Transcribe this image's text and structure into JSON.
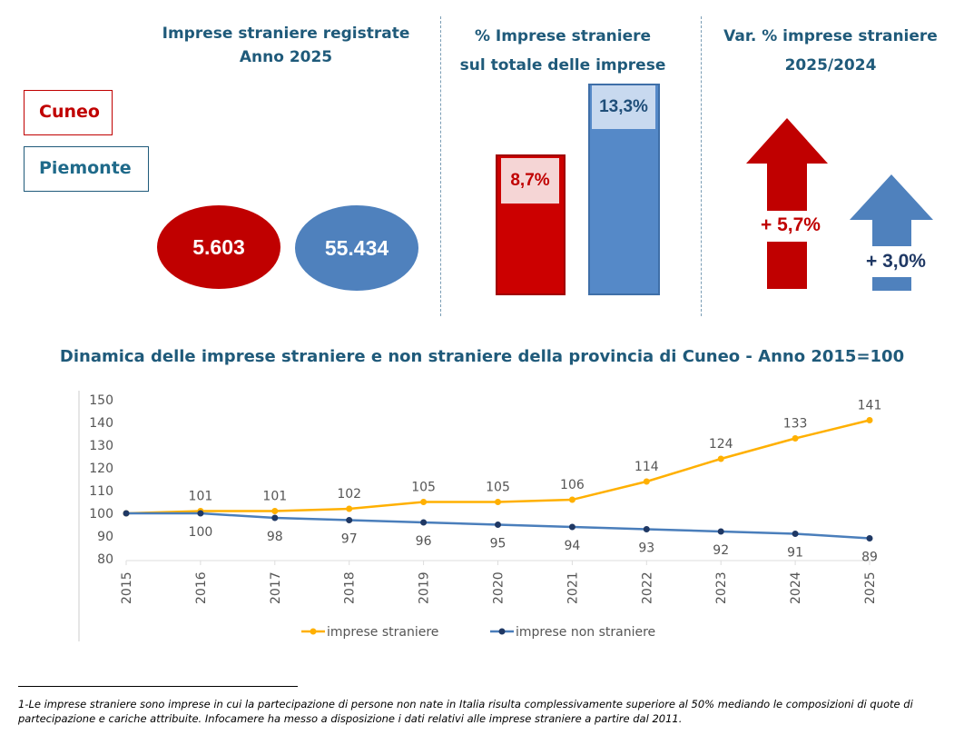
{
  "panel1": {
    "title_line1": "Imprese straniere registrate",
    "title_line2": "Anno 2025",
    "legend": [
      {
        "label": "Cuneo",
        "color": "#c00000"
      },
      {
        "label": "Piemonte",
        "color": "#1f6a8a"
      }
    ],
    "values": [
      {
        "region": "Cuneo",
        "value": "5.603",
        "color": "#c00000"
      },
      {
        "region": "Piemonte",
        "value": "55.434",
        "color": "#4f81bd"
      }
    ]
  },
  "panel2": {
    "title_line1": "% Imprese straniere",
    "title_line2": "sul totale delle imprese",
    "bars": [
      {
        "region": "Cuneo",
        "value": 8.7,
        "label": "8,7%",
        "color": "#cc0000"
      },
      {
        "region": "Piemonte",
        "value": 13.3,
        "label": "13,3%",
        "color": "#5589c8"
      }
    ]
  },
  "panel3": {
    "title_line1": "Var. % imprese straniere",
    "title_line2": "2025/2024",
    "arrows": [
      {
        "region": "Cuneo",
        "value": 5.7,
        "label": "+ 5,7%",
        "color": "#c00000"
      },
      {
        "region": "Piemonte",
        "value": 3.0,
        "label": "+ 3,0%",
        "color": "#4f81bd"
      }
    ]
  },
  "chart_data": {
    "type": "line",
    "title": "Dinamica delle imprese straniere e non straniere della provincia di Cuneo - Anno 2015=100",
    "x": [
      "2015",
      "2016",
      "2017",
      "2018",
      "2019",
      "2020",
      "2021",
      "2022",
      "2023",
      "2024",
      "2025"
    ],
    "yticks": [
      "150",
      "140",
      "130",
      "120",
      "110",
      "100",
      "90",
      "80"
    ],
    "ylim": [
      80,
      150
    ],
    "grid": false,
    "legend_position": "bottom",
    "series": [
      {
        "name": "imprese straniere",
        "color": "#ffb000",
        "values": [
          100,
          101,
          101,
          102,
          105,
          105,
          106,
          114,
          124,
          133,
          141
        ],
        "labels": [
          "",
          "101",
          "101",
          "102",
          "105",
          "105",
          "106",
          "114",
          "124",
          "133",
          "141"
        ]
      },
      {
        "name": "imprese non straniere",
        "color": "#4a7ebb",
        "marker_color": "#1f3864",
        "values": [
          100,
          100,
          98,
          97,
          96,
          95,
          94,
          93,
          92,
          91,
          89
        ],
        "labels": [
          "",
          "100",
          "98",
          "97",
          "96",
          "95",
          "94",
          "93",
          "92",
          "91",
          "89"
        ]
      }
    ]
  },
  "footnote": "1-Le imprese straniere sono imprese in cui la partecipazione di persone non nate in Italia risulta complessivamente superiore al 50% mediando le composizioni di quote di partecipazione e cariche attribuite. Infocamere ha messo a disposizione i dati relativi alle imprese straniere a partire dal 2011."
}
